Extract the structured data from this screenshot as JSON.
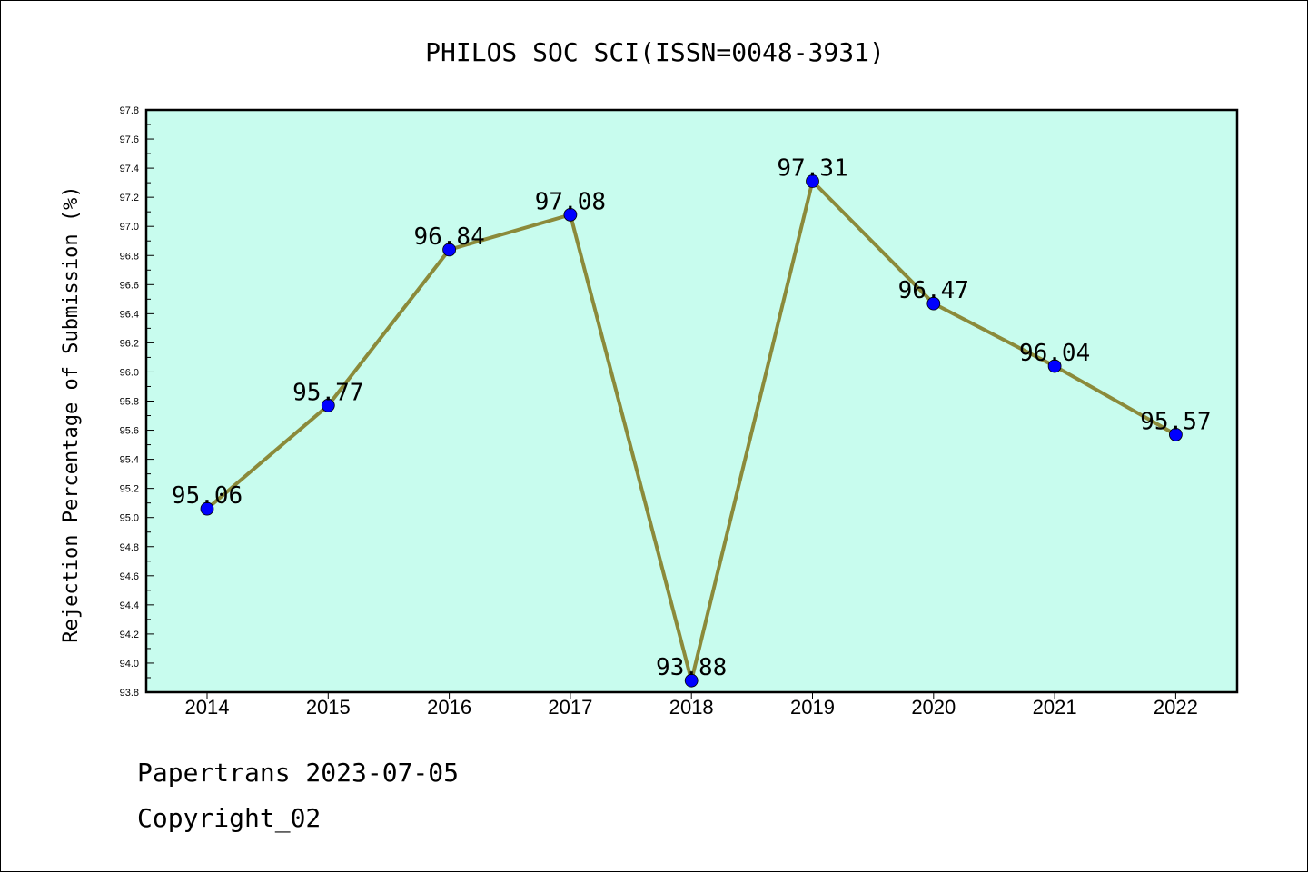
{
  "chart_data": {
    "type": "line",
    "title": "PHILOS SOC SCI(ISSN=0048-3931)",
    "xlabel": "",
    "ylabel": "Rejection Percentage of Submission (%)",
    "categories": [
      "2014",
      "2015",
      "2016",
      "2017",
      "2018",
      "2019",
      "2020",
      "2021",
      "2022"
    ],
    "values": [
      95.06,
      95.77,
      96.84,
      97.08,
      93.88,
      97.31,
      96.47,
      96.04,
      95.57
    ],
    "data_labels": [
      "95.06",
      "95.77",
      "96.84",
      "97.08",
      "93.88",
      "97.31",
      "96.47",
      "96.04",
      "95.57"
    ],
    "ylim": [
      93.8,
      97.8
    ],
    "yticks": [
      "93.8",
      "94.0",
      "94.2",
      "94.4",
      "94.6",
      "94.8",
      "95.0",
      "95.2",
      "95.4",
      "95.6",
      "95.8",
      "96.0",
      "96.2",
      "96.4",
      "96.6",
      "96.8",
      "97.0",
      "97.2",
      "97.4",
      "97.6",
      "97.8"
    ],
    "grid": false,
    "legend": "none",
    "colors": {
      "plot_background": "#c8fcee",
      "line": "#8b8a3a",
      "marker": "#0000ff"
    }
  },
  "footer": {
    "line1": "Papertrans 2023-07-05",
    "line2": "Copyright_02"
  }
}
